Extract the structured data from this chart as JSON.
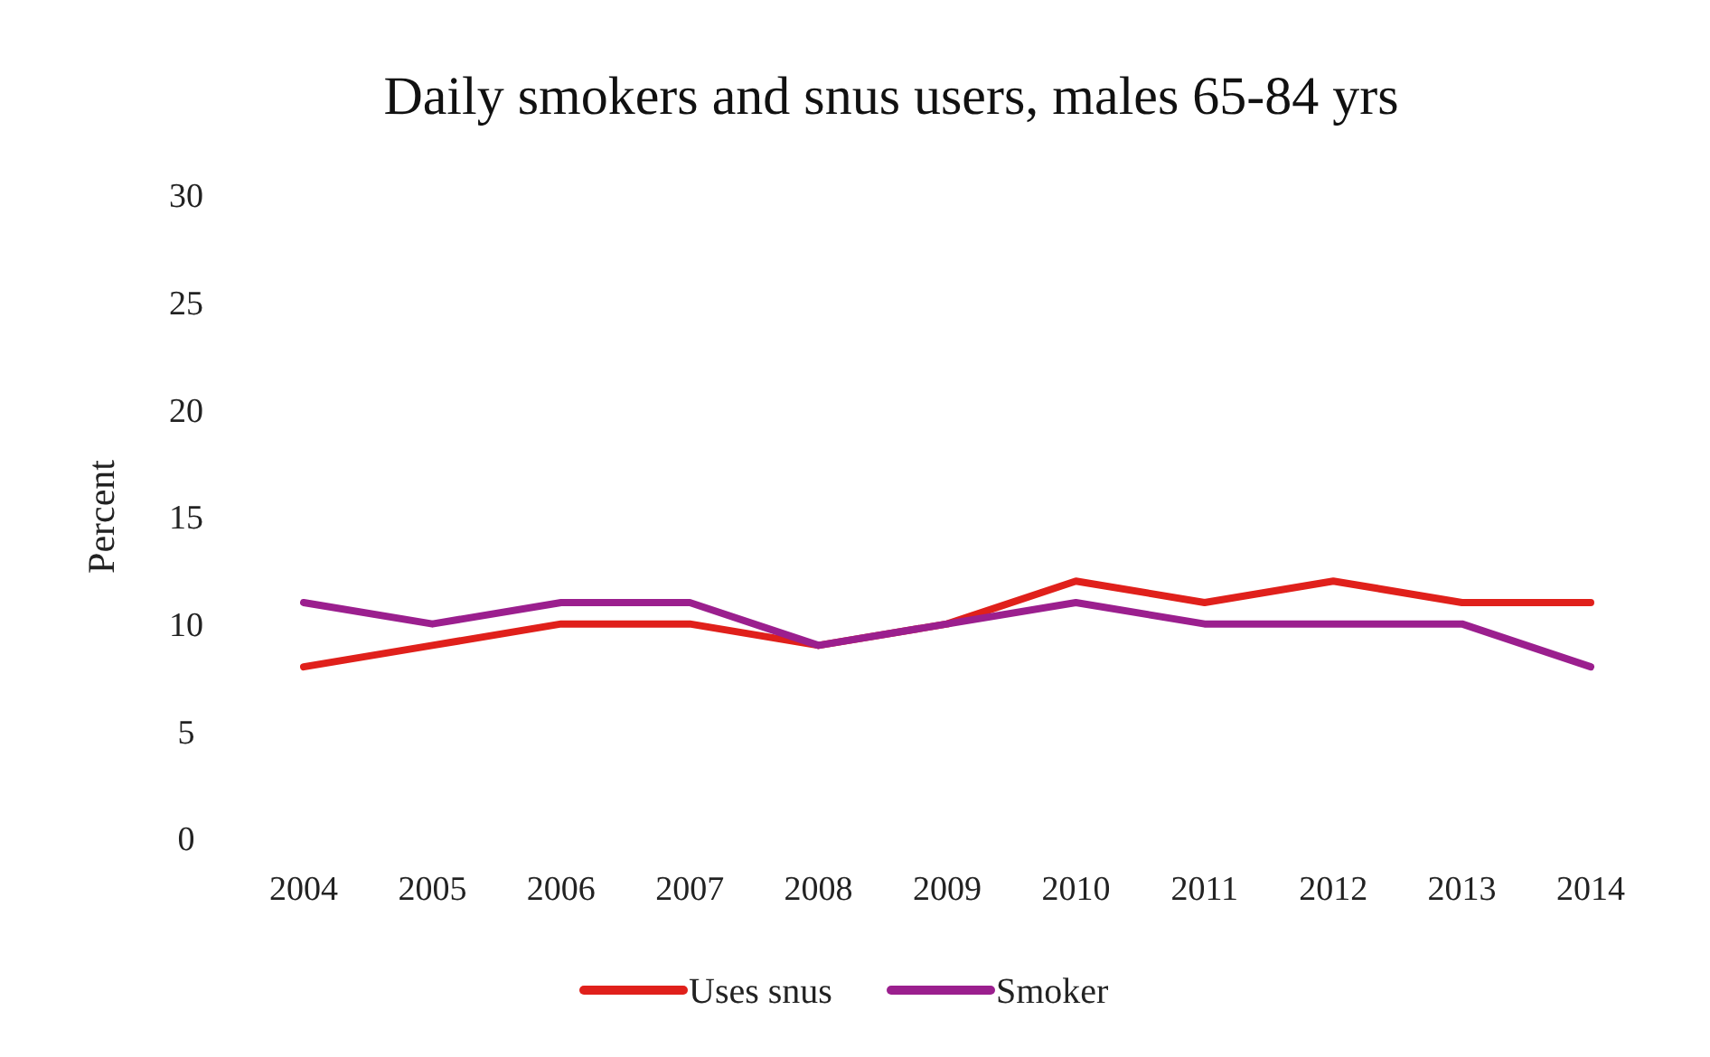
{
  "chart_data": {
    "type": "line",
    "title": "Daily smokers and snus users, males 65-84 yrs",
    "ylabel": "Percent",
    "categories": [
      "2004",
      "2005",
      "2006",
      "2007",
      "2008",
      "2009",
      "2010",
      "2011",
      "2012",
      "2013",
      "2014"
    ],
    "series": [
      {
        "name": "Uses snus",
        "color": "#e0201b",
        "values": [
          8,
          9,
          10,
          10,
          9,
          10,
          12,
          11,
          12,
          11,
          11
        ]
      },
      {
        "name": "Smoker",
        "color": "#9b1f8e",
        "values": [
          11,
          10,
          11,
          11,
          9,
          10,
          11,
          10,
          10,
          10,
          8
        ]
      }
    ],
    "ylim": [
      0,
      30
    ],
    "yticks": [
      0,
      5,
      10,
      15,
      20,
      25,
      30
    ],
    "legend": "bottom",
    "marker": "none",
    "line_style": "solid"
  }
}
